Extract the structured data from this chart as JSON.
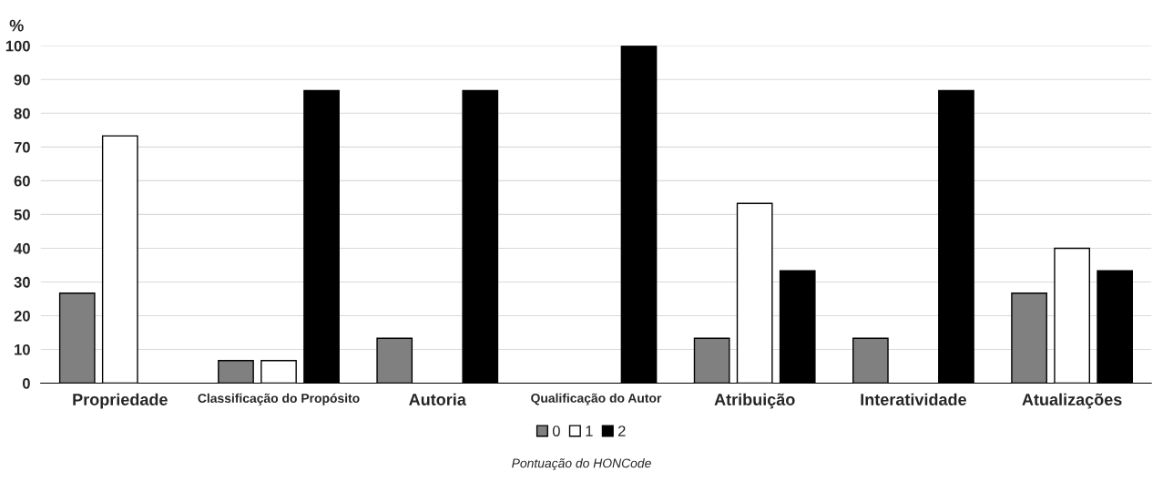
{
  "chart_data": {
    "type": "bar",
    "ylabel": "%",
    "xlabel": "Pontuação do HONCode",
    "categories": [
      "Propriedade",
      "Classificação do Propósito",
      "Autoria",
      "Qualificação do Autor",
      "Atribuição",
      "Interatividade",
      "Atualizações"
    ],
    "series": [
      {
        "name": "0",
        "color": "#808080",
        "values": [
          26.7,
          6.7,
          13.3,
          null,
          13.3,
          13.3,
          26.7
        ]
      },
      {
        "name": "1",
        "color": "#ffffff",
        "values": [
          73.3,
          6.7,
          null,
          null,
          53.3,
          null,
          40
        ]
      },
      {
        "name": "2",
        "color": "#000000",
        "values": [
          null,
          86.7,
          86.7,
          100,
          33.3,
          86.7,
          33.3
        ]
      }
    ],
    "ylim": [
      0,
      100
    ],
    "yticks": [
      0,
      10,
      20,
      30,
      40,
      50,
      60,
      70,
      80,
      90,
      100
    ],
    "grid": "y",
    "legend": "bottom"
  }
}
